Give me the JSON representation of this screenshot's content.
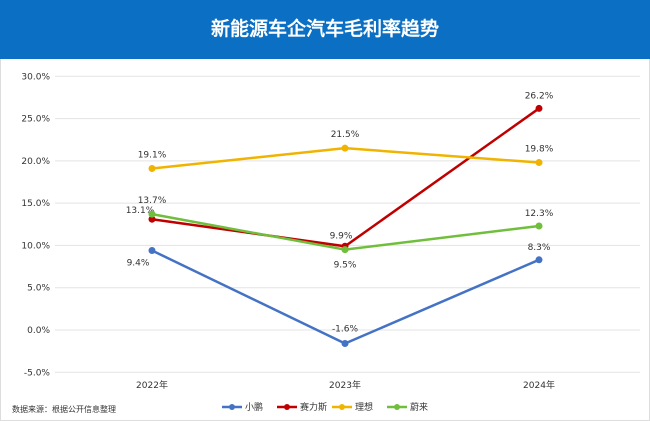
{
  "chart_data": {
    "type": "line",
    "title": "新能源车企汽车毛利率趋势",
    "categories": [
      "2022年",
      "2023年",
      "2024年"
    ],
    "ylim": [
      -5,
      30
    ],
    "yticks": [
      "-5.0%",
      "0.0%",
      "5.0%",
      "10.0%",
      "15.0%",
      "20.0%",
      "25.0%",
      "30.0%"
    ],
    "grid": true,
    "legend": "bottom",
    "series": [
      {
        "name": "小鹏",
        "color": "#4472c4",
        "values": [
          9.4,
          -1.6,
          8.3
        ],
        "labels": [
          "9.4%",
          "-1.6%",
          "8.3%"
        ]
      },
      {
        "name": "赛力斯",
        "color": "#c00000",
        "values": [
          13.1,
          9.9,
          26.2
        ],
        "labels": [
          "13.1%",
          "9.9%",
          "26.2%"
        ]
      },
      {
        "name": "理想",
        "color": "#f0b400",
        "values": [
          19.1,
          21.5,
          19.8
        ],
        "labels": [
          "19.1%",
          "21.5%",
          "19.8%"
        ]
      },
      {
        "name": "蔚来",
        "color": "#70bf3c",
        "values": [
          13.7,
          9.5,
          12.3
        ],
        "labels": [
          "13.7%",
          "9.5%",
          "12.3%"
        ]
      }
    ],
    "source": "数据来源：根据公开信息整理"
  }
}
